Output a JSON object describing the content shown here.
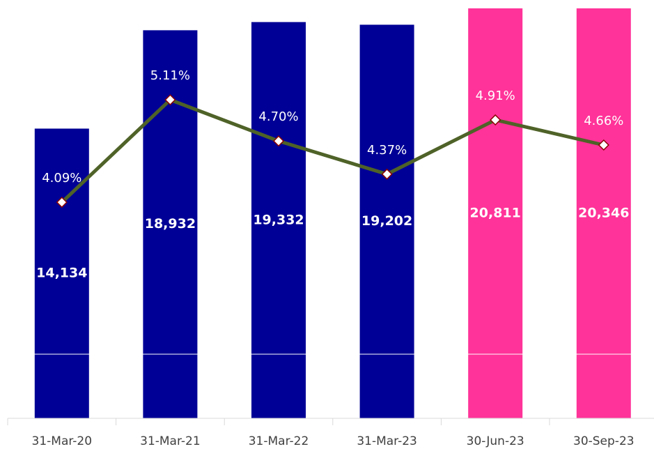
{
  "chart_data": {
    "type": "bar-line",
    "categories": [
      "31-Mar-20",
      "31-Mar-21",
      "31-Mar-22",
      "31-Mar-23",
      "30-Jun-23",
      "30-Sep-23"
    ],
    "series": [
      {
        "type": "bar",
        "colors": [
          "#000096",
          "#000096",
          "#000096",
          "#000096",
          "#ff3399",
          "#ff3399"
        ],
        "values": [
          14134,
          18932,
          19332,
          19202,
          20811,
          20346
        ],
        "value_labels": [
          "14,134",
          "18,932",
          "19,332",
          "19,202",
          "20,811",
          "20,346"
        ]
      },
      {
        "type": "line",
        "axis": "y2",
        "color": "#4f6228",
        "values": [
          4.09,
          5.11,
          4.7,
          4.37,
          4.91,
          4.66
        ],
        "value_labels": [
          "4.09%",
          "5.11%",
          "4.70%",
          "4.37%",
          "4.91%",
          "4.66%"
        ]
      }
    ],
    "ylim": [
      0,
      20000
    ],
    "y2lim": [
      1.94,
      6.02
    ]
  }
}
